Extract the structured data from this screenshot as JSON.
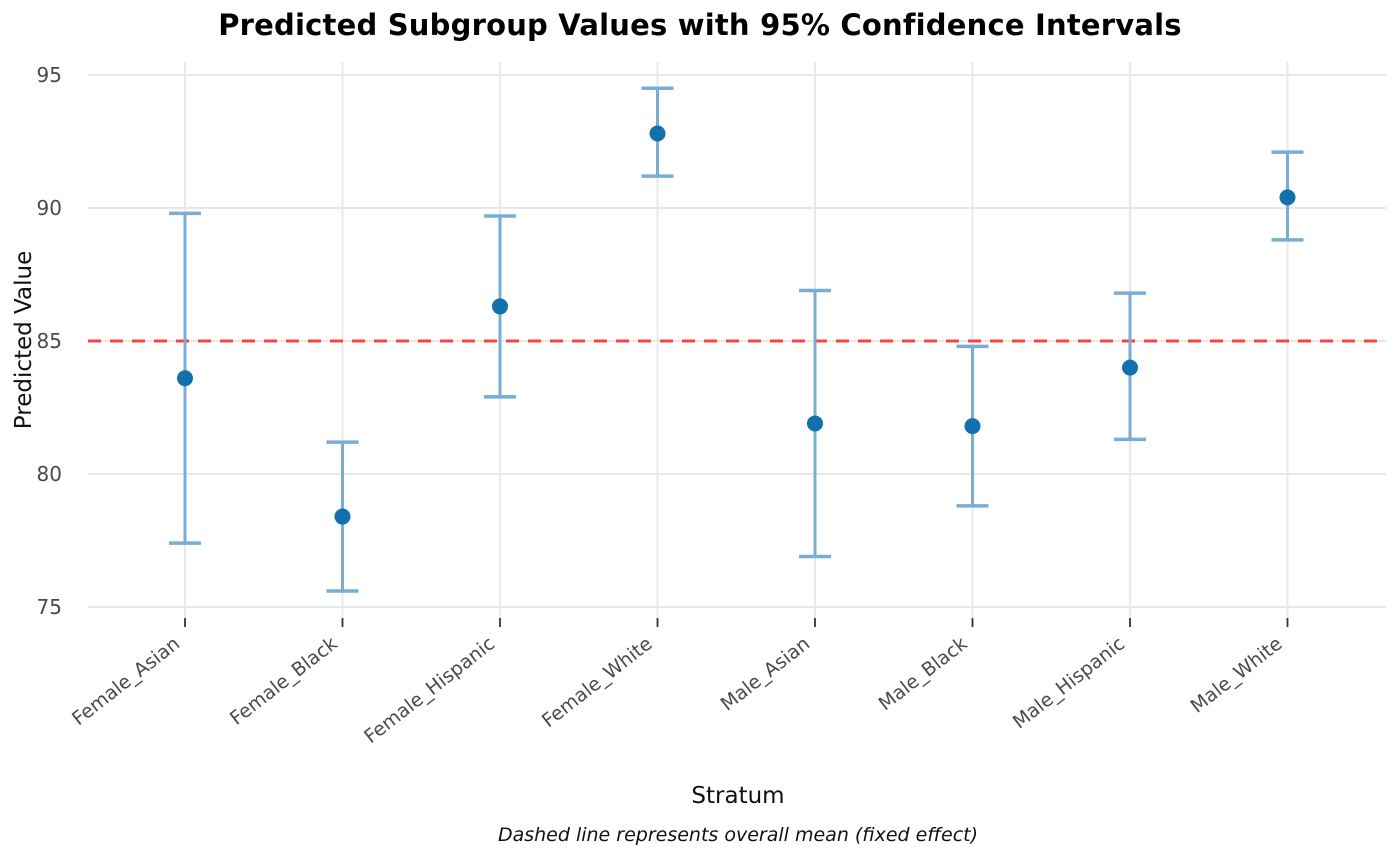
{
  "chart_data": {
    "type": "scatter",
    "title": "Predicted Subgroup Values with 95% Confidence Intervals",
    "xlabel": "Stratum",
    "ylabel": "Predicted Value",
    "caption": "Dashed line represents overall mean (fixed effect)",
    "categories": [
      "Female_Asian",
      "Female_Black",
      "Female_Hispanic",
      "Female_White",
      "Male_Asian",
      "Male_Black",
      "Male_Hispanic",
      "Male_White"
    ],
    "series": [
      {
        "name": "Predicted value with 95% CI",
        "values": [
          83.6,
          78.4,
          86.3,
          92.8,
          81.9,
          81.8,
          84.0,
          90.4
        ],
        "ci_low": [
          77.4,
          75.6,
          82.9,
          91.2,
          76.9,
          78.8,
          81.3,
          88.8
        ],
        "ci_high": [
          89.8,
          81.2,
          89.7,
          94.5,
          86.9,
          84.8,
          86.8,
          92.1
        ]
      }
    ],
    "reference_line": {
      "value": 85.0,
      "meaning": "overall mean (fixed effect)",
      "style": "dashed",
      "color": "#f94343"
    },
    "yticks": [
      75,
      80,
      85,
      90,
      95
    ],
    "ylim": [
      74.5,
      95.5
    ],
    "grid": true,
    "legend": "none",
    "colors": {
      "point": "#1170ad",
      "error_bar": "#79add3",
      "gridline": "#e8e8e8",
      "tick_label": "#4a4a4a",
      "tick_mark": "#333333"
    }
  }
}
